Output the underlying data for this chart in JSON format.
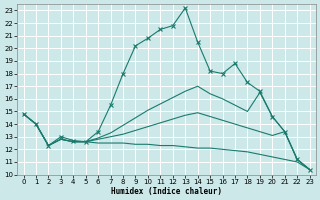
{
  "xlabel": "Humidex (Indice chaleur)",
  "xlim": [
    -0.5,
    23.5
  ],
  "ylim": [
    10,
    23.5
  ],
  "yticks": [
    10,
    11,
    12,
    13,
    14,
    15,
    16,
    17,
    18,
    19,
    20,
    21,
    22,
    23
  ],
  "xticks": [
    0,
    1,
    2,
    3,
    4,
    5,
    6,
    7,
    8,
    9,
    10,
    11,
    12,
    13,
    14,
    15,
    16,
    17,
    18,
    19,
    20,
    21,
    22,
    23
  ],
  "bg_color": "#cce8e8",
  "grid_color": "#ffffff",
  "line_color": "#1a7a6e",
  "lines": [
    {
      "x": [
        0,
        1,
        2,
        3,
        4,
        5,
        6,
        7,
        8,
        9,
        10,
        11,
        12,
        13,
        14,
        15,
        16,
        17,
        18,
        19,
        20,
        21,
        22,
        23
      ],
      "y": [
        14.8,
        14.0,
        12.3,
        13.0,
        12.7,
        12.6,
        13.4,
        15.5,
        18.0,
        20.2,
        20.8,
        21.5,
        21.8,
        23.2,
        20.5,
        18.2,
        18.0,
        18.8,
        17.3,
        16.6,
        14.6,
        13.4,
        11.2,
        10.4
      ],
      "marker": true
    },
    {
      "x": [
        0,
        1,
        2,
        3,
        4,
        5,
        6,
        7,
        8,
        9,
        10,
        11,
        12,
        13,
        14,
        15,
        16,
        17,
        18,
        19,
        20,
        21,
        22,
        23
      ],
      "y": [
        14.8,
        14.0,
        12.3,
        12.8,
        12.6,
        12.6,
        12.9,
        13.3,
        13.9,
        14.5,
        15.1,
        15.6,
        16.1,
        16.6,
        17.0,
        16.4,
        16.0,
        15.5,
        15.0,
        16.5,
        14.6,
        13.4,
        11.2,
        10.4
      ],
      "marker": false
    },
    {
      "x": [
        0,
        1,
        2,
        3,
        4,
        5,
        6,
        7,
        8,
        9,
        10,
        11,
        12,
        13,
        14,
        15,
        16,
        17,
        18,
        19,
        20,
        21,
        22,
        23
      ],
      "y": [
        14.8,
        14.0,
        12.3,
        12.8,
        12.6,
        12.6,
        12.8,
        13.0,
        13.2,
        13.5,
        13.8,
        14.1,
        14.4,
        14.7,
        14.9,
        14.6,
        14.3,
        14.0,
        13.7,
        13.4,
        13.1,
        13.4,
        11.2,
        10.4
      ],
      "marker": false
    },
    {
      "x": [
        0,
        1,
        2,
        3,
        4,
        5,
        6,
        7,
        8,
        9,
        10,
        11,
        12,
        13,
        14,
        15,
        16,
        17,
        18,
        19,
        20,
        21,
        22,
        23
      ],
      "y": [
        14.8,
        14.0,
        12.3,
        12.8,
        12.6,
        12.6,
        12.5,
        12.5,
        12.5,
        12.4,
        12.4,
        12.3,
        12.3,
        12.2,
        12.1,
        12.1,
        12.0,
        11.9,
        11.8,
        11.6,
        11.4,
        11.2,
        11.0,
        10.4
      ],
      "marker": false
    }
  ]
}
